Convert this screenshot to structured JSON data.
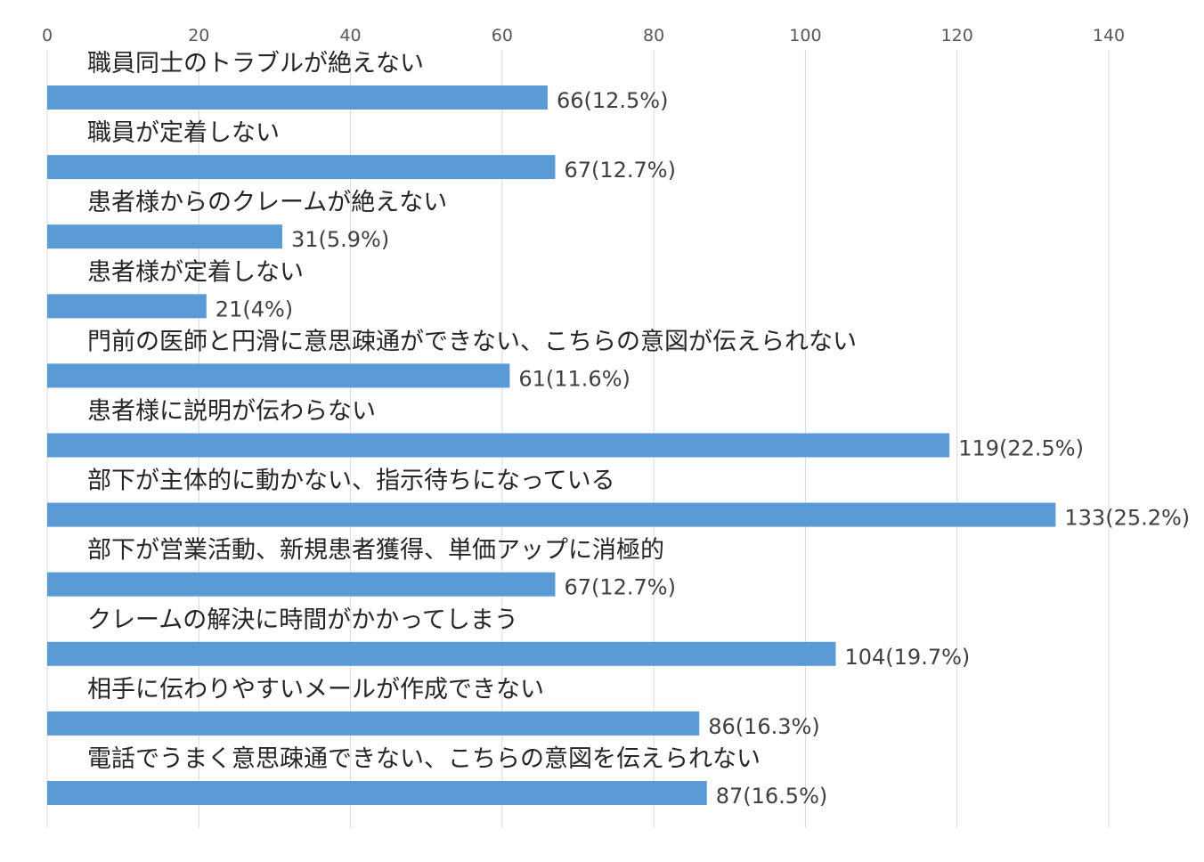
{
  "chart_data": {
    "type": "bar",
    "orientation": "horizontal",
    "x_axis_position": "top",
    "xlim": [
      0,
      140
    ],
    "x_ticks": [
      0,
      20,
      40,
      60,
      80,
      100,
      120,
      140
    ],
    "grid": true,
    "bar_color": "#5b9bd5",
    "categories": [
      "職員同士のトラブルが絶えない",
      "職員が定着しない",
      "患者様からのクレームが絶えない",
      "患者様が定着しない",
      "門前の医師と円滑に意思疎通ができない、こちらの意図が伝えられない",
      "患者様に説明が伝わらない",
      "部下が主体的に動かない、指示待ちになっている",
      "部下が営業活動、新規患者獲得、単価アップに消極的",
      "クレームの解決に時間がかかってしまう",
      "相手に伝わりやすいメールが作成できない",
      "電話でうまく意思疎通できない、こちらの意図を伝えられない"
    ],
    "values": [
      66,
      67,
      31,
      21,
      61,
      119,
      133,
      67,
      104,
      86,
      87
    ],
    "data_labels": [
      "66(12.5%)",
      "67(12.7%)",
      "31(5.9%)",
      "21(4%)",
      "61(11.6%)",
      "119(22.5%)",
      "133(25.2%)",
      "67(12.7%)",
      "104(19.7%)",
      "86(16.3%)",
      "87(16.5%)"
    ]
  }
}
